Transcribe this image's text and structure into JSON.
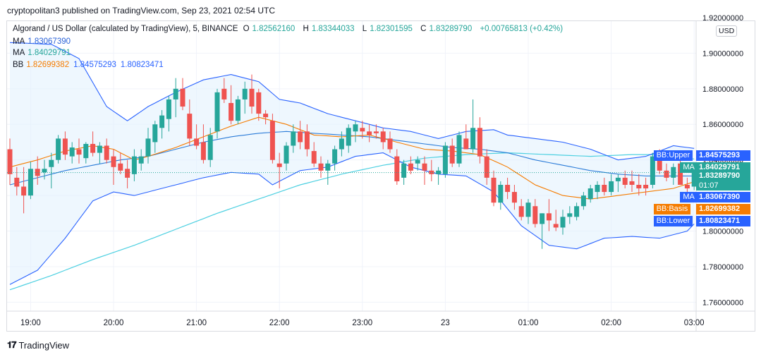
{
  "published_line": "cryptopolitan3 published on TradingView.com, Sep 23, 2021 02:54 UTC",
  "legend": {
    "symbol": "Algorand / US Dollar (calculated by TradingView), 5, BINANCE",
    "o_label": "O",
    "o": "1.82562160",
    "h_label": "H",
    "h": "1.83344033",
    "l_label": "L",
    "l": "1.82301595",
    "c_label": "C",
    "c": "1.83289790",
    "change": "+0.00765813 (+0.42%)",
    "ma1_label": "MA",
    "ma1": "1.83067390",
    "ma2_label": "MA",
    "ma2": "1.84029791",
    "bb_label": "BB",
    "bb_basis": "1.82699382",
    "bb_upper": "1.84575293",
    "bb_lower": "1.80823471"
  },
  "currency": "USD",
  "branding": "TradingView",
  "colors": {
    "up": "#26a69a",
    "down": "#ef5350",
    "bb_band": "#2962ff",
    "bb_basis": "#f57c00",
    "ma_fast": "#2a7bd8",
    "ma_slow": "#4dd0e1",
    "fill": "#e3f2fd"
  },
  "badges": [
    {
      "label": "BB:Upper",
      "value": "1.84575293",
      "color": "#2962ff"
    },
    {
      "label": "MA",
      "value": "1.84029791",
      "color": "#26a69a"
    },
    {
      "label": "",
      "value": "1.83289790",
      "sub": "01:07",
      "color": "#26a69a"
    },
    {
      "label": "MA",
      "value": "1.83067390",
      "color": "#2962ff"
    },
    {
      "label": "BB:Basis",
      "value": "1.82699382",
      "color": "#f57c00"
    },
    {
      "label": "BB:Lower",
      "value": "1.80823471",
      "color": "#2962ff"
    }
  ],
  "chart_data": {
    "type": "candlestick",
    "title": "Algorand / US Dollar (calculated by TradingView), 5, BINANCE",
    "ylim": [
      1.755,
      1.918
    ],
    "y_ticks": [
      "1.76000000",
      "1.78000000",
      "1.80000000",
      "1.82000000",
      "1.84000000",
      "1.86000000",
      "1.88000000",
      "1.90000000",
      "1.92000000"
    ],
    "y_tick_values": [
      1.76,
      1.78,
      1.8,
      1.82,
      1.84,
      1.86,
      1.88,
      1.9,
      1.92
    ],
    "x_ticks": [
      "19:00",
      "20:00",
      "21:00",
      "22:00",
      "23:00",
      "23",
      "01:00",
      "02:00",
      "03:00"
    ],
    "x_tick_index": [
      3,
      15,
      27,
      39,
      51,
      63,
      75,
      87,
      99
    ],
    "candles": [
      [
        1.846,
        1.852,
        1.826,
        1.832
      ],
      [
        1.83,
        1.836,
        1.82,
        1.825
      ],
      [
        1.825,
        1.836,
        1.81,
        1.82
      ],
      [
        1.82,
        1.839,
        1.818,
        1.835
      ],
      [
        1.835,
        1.842,
        1.826,
        1.831
      ],
      [
        1.833,
        1.84,
        1.829,
        1.835
      ],
      [
        1.836,
        1.844,
        1.824,
        1.84
      ],
      [
        1.84,
        1.854,
        1.838,
        1.852
      ],
      [
        1.852,
        1.856,
        1.84,
        1.843
      ],
      [
        1.842,
        1.85,
        1.838,
        1.847
      ],
      [
        1.846,
        1.852,
        1.838,
        1.843
      ],
      [
        1.841,
        1.85,
        1.838,
        1.849
      ],
      [
        1.849,
        1.856,
        1.842,
        1.844
      ],
      [
        1.844,
        1.85,
        1.838,
        1.848
      ],
      [
        1.848,
        1.852,
        1.838,
        1.84
      ],
      [
        1.842,
        1.846,
        1.826,
        1.836
      ],
      [
        1.838,
        1.844,
        1.832,
        1.834
      ],
      [
        1.835,
        1.84,
        1.824,
        1.83
      ],
      [
        1.832,
        1.846,
        1.828,
        1.842
      ],
      [
        1.838,
        1.846,
        1.834,
        1.842
      ],
      [
        1.842,
        1.858,
        1.838,
        1.852
      ],
      [
        1.85,
        1.862,
        1.844,
        1.86
      ],
      [
        1.858,
        1.868,
        1.852,
        1.865
      ],
      [
        1.863,
        1.876,
        1.856,
        1.874
      ],
      [
        1.874,
        1.886,
        1.864,
        1.88
      ],
      [
        1.88,
        1.886,
        1.868,
        1.87
      ],
      [
        1.866,
        1.874,
        1.848,
        1.852
      ],
      [
        1.852,
        1.86,
        1.846,
        1.848
      ],
      [
        1.85,
        1.86,
        1.838,
        1.84
      ],
      [
        1.84,
        1.858,
        1.836,
        1.854
      ],
      [
        1.856,
        1.88,
        1.852,
        1.878
      ],
      [
        1.88,
        1.886,
        1.872,
        1.874
      ],
      [
        1.872,
        1.882,
        1.86,
        1.862
      ],
      [
        1.862,
        1.876,
        1.86,
        1.874
      ],
      [
        1.874,
        1.884,
        1.866,
        1.88
      ],
      [
        1.88,
        1.888,
        1.866,
        1.87
      ],
      [
        1.878,
        1.88,
        1.862,
        1.866
      ],
      [
        1.866,
        1.868,
        1.86,
        1.864
      ],
      [
        1.862,
        1.866,
        1.838,
        1.84
      ],
      [
        1.838,
        1.844,
        1.824,
        1.836
      ],
      [
        1.838,
        1.85,
        1.834,
        1.848
      ],
      [
        1.848,
        1.86,
        1.844,
        1.856
      ],
      [
        1.856,
        1.862,
        1.846,
        1.85
      ],
      [
        1.856,
        1.86,
        1.842,
        1.846
      ],
      [
        1.845,
        1.85,
        1.836,
        1.838
      ],
      [
        1.838,
        1.842,
        1.83,
        1.834
      ],
      [
        1.834,
        1.84,
        1.826,
        1.838
      ],
      [
        1.838,
        1.848,
        1.834,
        1.846
      ],
      [
        1.846,
        1.856,
        1.842,
        1.852
      ],
      [
        1.848,
        1.86,
        1.844,
        1.858
      ],
      [
        1.856,
        1.862,
        1.85,
        1.86
      ],
      [
        1.858,
        1.862,
        1.852,
        1.856
      ],
      [
        1.856,
        1.86,
        1.85,
        1.854
      ],
      [
        1.856,
        1.86,
        1.852,
        1.855
      ],
      [
        1.856,
        1.858,
        1.846,
        1.85
      ],
      [
        1.852,
        1.856,
        1.844,
        1.846
      ],
      [
        1.842,
        1.846,
        1.826,
        1.828
      ],
      [
        1.83,
        1.84,
        1.826,
        1.838
      ],
      [
        1.838,
        1.842,
        1.832,
        1.834
      ],
      [
        1.838,
        1.842,
        1.834,
        1.84
      ],
      [
        1.838,
        1.842,
        1.826,
        1.834
      ],
      [
        1.834,
        1.84,
        1.828,
        1.832
      ],
      [
        1.832,
        1.836,
        1.826,
        1.834
      ],
      [
        1.832,
        1.85,
        1.83,
        1.848
      ],
      [
        1.848,
        1.852,
        1.836,
        1.838
      ],
      [
        1.838,
        1.856,
        1.836,
        1.854
      ],
      [
        1.852,
        1.86,
        1.846,
        1.846
      ],
      [
        1.846,
        1.874,
        1.844,
        1.858
      ],
      [
        1.858,
        1.864,
        1.838,
        1.842
      ],
      [
        1.842,
        1.846,
        1.826,
        1.83
      ],
      [
        1.83,
        1.834,
        1.814,
        1.816
      ],
      [
        1.816,
        1.828,
        1.812,
        1.826
      ],
      [
        1.826,
        1.83,
        1.818,
        1.822
      ],
      [
        1.822,
        1.826,
        1.812,
        1.816
      ],
      [
        1.814,
        1.818,
        1.806,
        1.808
      ],
      [
        1.808,
        1.818,
        1.804,
        1.816
      ],
      [
        1.814,
        1.818,
        1.802,
        1.804
      ],
      [
        1.804,
        1.81,
        1.79,
        1.81
      ],
      [
        1.81,
        1.818,
        1.8,
        1.806
      ],
      [
        1.804,
        1.812,
        1.8,
        1.802
      ],
      [
        1.802,
        1.812,
        1.798,
        1.808
      ],
      [
        1.808,
        1.814,
        1.804,
        1.81
      ],
      [
        1.808,
        1.816,
        1.806,
        1.814
      ],
      [
        1.814,
        1.822,
        1.812,
        1.82
      ],
      [
        1.818,
        1.826,
        1.816,
        1.824
      ],
      [
        1.822,
        1.828,
        1.818,
        1.826
      ],
      [
        1.826,
        1.83,
        1.82,
        1.822
      ],
      [
        1.822,
        1.832,
        1.82,
        1.828
      ],
      [
        1.828,
        1.832,
        1.822,
        1.83
      ],
      [
        1.83,
        1.834,
        1.824,
        1.826
      ],
      [
        1.828,
        1.834,
        1.822,
        1.826
      ],
      [
        1.826,
        1.832,
        1.82,
        1.824
      ],
      [
        1.826,
        1.83,
        1.82,
        1.824
      ],
      [
        1.826,
        1.844,
        1.824,
        1.842
      ],
      [
        1.844,
        1.846,
        1.832,
        1.834
      ],
      [
        1.834,
        1.838,
        1.828,
        1.83
      ],
      [
        1.83,
        1.838,
        1.826,
        1.836
      ],
      [
        1.838,
        1.84,
        1.826,
        1.826
      ],
      [
        1.826,
        1.83,
        1.822,
        1.824
      ],
      [
        1.825,
        1.834,
        1.823,
        1.833
      ]
    ],
    "bb_upper": [
      [
        0,
        1.906
      ],
      [
        6,
        1.905
      ],
      [
        10,
        1.897
      ],
      [
        14,
        1.87
      ],
      [
        17,
        1.862
      ],
      [
        20,
        1.87
      ],
      [
        24,
        1.878
      ],
      [
        28,
        1.885
      ],
      [
        32,
        1.888
      ],
      [
        36,
        1.884
      ],
      [
        39,
        1.874
      ],
      [
        42,
        1.872
      ],
      [
        46,
        1.866
      ],
      [
        50,
        1.862
      ],
      [
        54,
        1.858
      ],
      [
        58,
        1.856
      ],
      [
        62,
        1.852
      ],
      [
        66,
        1.856
      ],
      [
        70,
        1.857
      ],
      [
        72,
        1.854
      ],
      [
        76,
        1.852
      ],
      [
        80,
        1.85
      ],
      [
        84,
        1.846
      ],
      [
        88,
        1.84
      ],
      [
        92,
        1.842
      ],
      [
        96,
        1.848
      ],
      [
        100,
        1.846
      ]
    ],
    "bb_basis": [
      [
        0,
        1.836
      ],
      [
        4,
        1.84
      ],
      [
        8,
        1.845
      ],
      [
        12,
        1.848
      ],
      [
        15,
        1.846
      ],
      [
        18,
        1.84
      ],
      [
        20,
        1.842
      ],
      [
        24,
        1.847
      ],
      [
        28,
        1.853
      ],
      [
        32,
        1.859
      ],
      [
        36,
        1.864
      ],
      [
        40,
        1.86
      ],
      [
        44,
        1.854
      ],
      [
        48,
        1.853
      ],
      [
        52,
        1.854
      ],
      [
        56,
        1.85
      ],
      [
        60,
        1.846
      ],
      [
        64,
        1.845
      ],
      [
        68,
        1.843
      ],
      [
        72,
        1.836
      ],
      [
        76,
        1.826
      ],
      [
        80,
        1.82
      ],
      [
        84,
        1.818
      ],
      [
        88,
        1.82
      ],
      [
        92,
        1.822
      ],
      [
        96,
        1.824
      ],
      [
        100,
        1.829
      ]
    ],
    "bb_lower": [
      [
        0,
        1.77
      ],
      [
        4,
        1.778
      ],
      [
        8,
        1.796
      ],
      [
        12,
        1.817
      ],
      [
        15,
        1.822
      ],
      [
        18,
        1.82
      ],
      [
        20,
        1.822
      ],
      [
        24,
        1.826
      ],
      [
        28,
        1.83
      ],
      [
        32,
        1.833
      ],
      [
        36,
        1.832
      ],
      [
        38,
        1.826
      ],
      [
        42,
        1.834
      ],
      [
        46,
        1.836
      ],
      [
        50,
        1.842
      ],
      [
        54,
        1.844
      ],
      [
        58,
        1.836
      ],
      [
        62,
        1.832
      ],
      [
        66,
        1.831
      ],
      [
        70,
        1.822
      ],
      [
        74,
        1.803
      ],
      [
        78,
        1.792
      ],
      [
        82,
        1.79
      ],
      [
        86,
        1.796
      ],
      [
        90,
        1.797
      ],
      [
        94,
        1.796
      ],
      [
        98,
        1.8
      ],
      [
        100,
        1.808
      ]
    ],
    "ma_fast": [
      [
        0,
        1.826
      ],
      [
        4,
        1.83
      ],
      [
        8,
        1.834
      ],
      [
        12,
        1.837
      ],
      [
        16,
        1.84
      ],
      [
        20,
        1.842
      ],
      [
        24,
        1.846
      ],
      [
        28,
        1.85
      ],
      [
        32,
        1.853
      ],
      [
        36,
        1.855
      ],
      [
        40,
        1.856
      ],
      [
        44,
        1.855
      ],
      [
        48,
        1.854
      ],
      [
        52,
        1.853
      ],
      [
        56,
        1.851
      ],
      [
        60,
        1.849
      ],
      [
        64,
        1.847
      ],
      [
        68,
        1.846
      ],
      [
        72,
        1.844
      ],
      [
        76,
        1.84
      ],
      [
        80,
        1.837
      ],
      [
        84,
        1.834
      ],
      [
        88,
        1.832
      ],
      [
        92,
        1.831
      ],
      [
        96,
        1.831
      ],
      [
        100,
        1.831
      ]
    ],
    "ma_slow": [
      [
        0,
        1.767
      ],
      [
        6,
        1.775
      ],
      [
        12,
        1.784
      ],
      [
        18,
        1.792
      ],
      [
        24,
        1.801
      ],
      [
        30,
        1.81
      ],
      [
        36,
        1.818
      ],
      [
        42,
        1.826
      ],
      [
        48,
        1.832
      ],
      [
        54,
        1.837
      ],
      [
        60,
        1.841
      ],
      [
        66,
        1.843
      ],
      [
        72,
        1.844
      ],
      [
        78,
        1.843
      ],
      [
        84,
        1.842
      ],
      [
        90,
        1.843
      ],
      [
        94,
        1.843
      ],
      [
        100,
        1.84
      ]
    ],
    "last_price": 1.8328979
  }
}
